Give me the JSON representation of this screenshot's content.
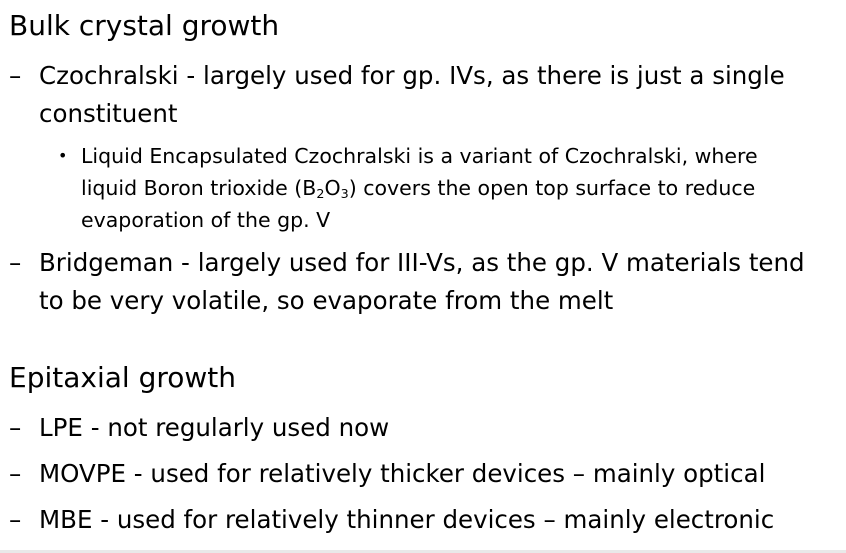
{
  "sections": [
    {
      "heading": "Bulk crystal growth",
      "items": [
        {
          "marker": "–",
          "lines": [
            "Czochralski - largely used for gp. IVs, as there is just a single",
            "constituent"
          ]
        },
        {
          "marker": "•",
          "line1": "Liquid Encapsulated Czochralski is a variant of Czochralski, where",
          "line2_pre": "liquid Boron trioxide (B",
          "sub1": "2",
          "line2_mid": "O",
          "sub2": "3",
          "line2_post": ") covers the open top surface to reduce",
          "line3": "evaporation of the gp. V"
        },
        {
          "marker": "–",
          "lines": [
            "Bridgeman - largely used for III-Vs, as the gp. V materials tend",
            "to be very volatile, so evaporate from the melt"
          ]
        }
      ]
    },
    {
      "heading": "Epitaxial growth",
      "items": [
        {
          "marker": "–",
          "lines": [
            "LPE - not regularly used now"
          ]
        },
        {
          "marker": "–",
          "lines": [
            "MOVPE - used for relatively thicker devices – mainly optical"
          ]
        },
        {
          "marker": "–",
          "lines": [
            "MBE - used for relatively thinner devices – mainly electronic"
          ]
        }
      ]
    }
  ]
}
